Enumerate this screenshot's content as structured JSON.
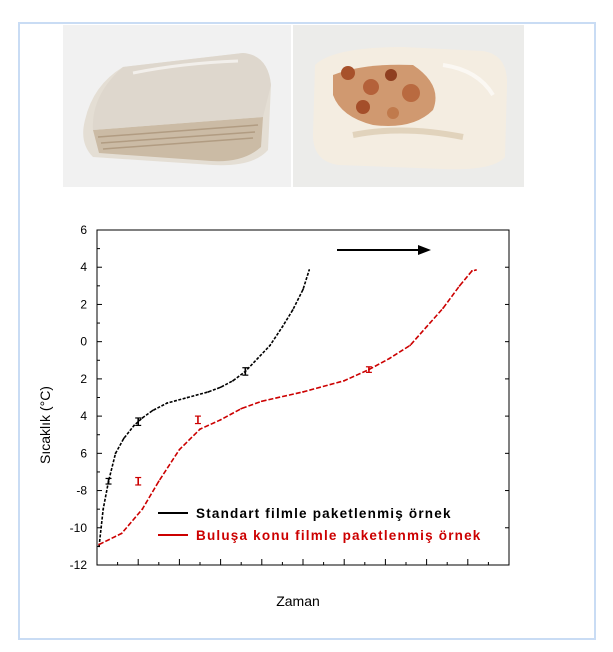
{
  "photos": [
    {
      "icon": "standard-film-package-photo",
      "colors": [
        "#f1f1f1",
        "#d8cfc2",
        "#bfae99"
      ]
    },
    {
      "icon": "invention-film-package-photo",
      "colors": [
        "#ececea",
        "#efe6d6",
        "#b8643a"
      ]
    }
  ],
  "chart_data": {
    "type": "line",
    "title": "",
    "xlabel": "Zaman",
    "ylabel": "Sıcaklık (°C)",
    "ylim": [
      -12,
      6
    ],
    "yticks": [
      6,
      4,
      2,
      0,
      -2,
      -4,
      -6,
      -8,
      -10,
      -12
    ],
    "ytick_labels": [
      "6",
      "4",
      "2",
      "0",
      "2",
      "4",
      "6",
      "-8",
      "-10",
      "-12"
    ],
    "xlim": [
      0,
      10
    ],
    "x_minor_ticks": 10,
    "grid": false,
    "legend_position": "lower-right",
    "arrow_icon": "right-arrow-icon",
    "series": [
      {
        "name": "Standart filmle paketlenmiş örnek",
        "color": "#000000",
        "x": [
          0.05,
          0.15,
          0.28,
          0.45,
          0.65,
          0.9,
          1.1,
          1.35,
          1.7,
          2.2,
          2.7,
          3.0,
          3.3,
          3.6,
          3.9,
          4.2,
          4.5,
          4.75,
          5.0,
          5.15
        ],
        "y": [
          -11,
          -9,
          -7.5,
          -6,
          -5.2,
          -4.5,
          -4.1,
          -3.7,
          -3.3,
          -3.0,
          -2.7,
          -2.45,
          -2.1,
          -1.6,
          -0.9,
          -0.2,
          0.8,
          1.7,
          2.8,
          3.85
        ]
      },
      {
        "name": "Buluşa konu filmle paketlenmiş örnek",
        "color": "#cc0000",
        "x": [
          0.05,
          0.6,
          1.1,
          1.5,
          2.0,
          2.5,
          3.0,
          3.5,
          4.0,
          5.0,
          6.0,
          6.6,
          7.1,
          7.6,
          8.0,
          8.4,
          8.8,
          9.1,
          9.2
        ],
        "y": [
          -10.9,
          -10.3,
          -9.0,
          -7.5,
          -5.8,
          -4.7,
          -4.2,
          -3.6,
          -3.2,
          -2.7,
          -2.1,
          -1.5,
          -0.9,
          -0.2,
          0.8,
          1.8,
          3.0,
          3.8,
          3.85
        ]
      }
    ],
    "error_bars": [
      {
        "series": 0,
        "x": 0.28,
        "y": -7.5,
        "err": 0.15
      },
      {
        "series": 0,
        "x": 1.0,
        "y": -4.3,
        "err": 0.2
      },
      {
        "series": 0,
        "x": 3.6,
        "y": -1.6,
        "err": 0.2
      },
      {
        "series": 1,
        "x": 1.0,
        "y": -7.5,
        "err": 0.2
      },
      {
        "series": 1,
        "x": 2.45,
        "y": -4.2,
        "err": 0.2
      },
      {
        "series": 1,
        "x": 6.6,
        "y": -1.5,
        "err": 0.15
      }
    ]
  }
}
